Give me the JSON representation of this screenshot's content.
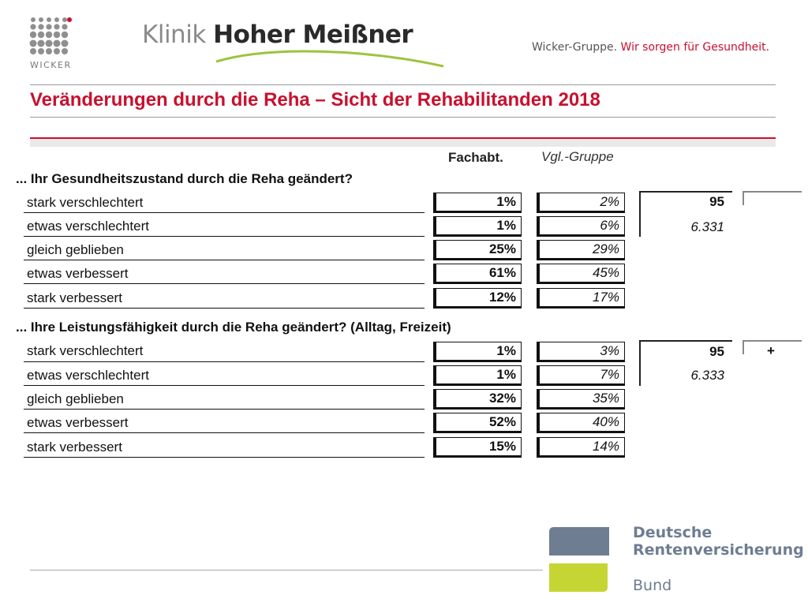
{
  "header": {
    "wicker_logo_text": "WICKER",
    "clinic_light": "Klinik ",
    "clinic_bold": "Hoher Meißner",
    "tagline_grey": "Wicker-Gruppe. ",
    "tagline_red": "Wir sorgen für Gesundheit."
  },
  "title": "Veränderungen durch die Reha – Sicht der Rehabilitanden 2018",
  "columns": {
    "fach": "Fachabt.",
    "vgl": "Vgl.-Gruppe"
  },
  "sections": [
    {
      "question": "... Ihr Gesundheitszustand durch die Reha geändert?",
      "rows": [
        {
          "label": "stark verschlechtert",
          "fach": "1%",
          "vgl": "2%"
        },
        {
          "label": "etwas verschlechtert",
          "fach": "1%",
          "vgl": "6%"
        },
        {
          "label": "gleich geblieben",
          "fach": "25%",
          "vgl": "29%"
        },
        {
          "label": "etwas verbessert",
          "fach": "61%",
          "vgl": "45%"
        },
        {
          "label": "stark verbessert",
          "fach": "12%",
          "vgl": "17%"
        }
      ],
      "n": "95",
      "n_vgl": "6.331",
      "sig": ""
    },
    {
      "question": "... Ihre Leistungsfähigkeit durch die Reha geändert? (Alltag, Freizeit)",
      "rows": [
        {
          "label": "stark verschlechtert",
          "fach": "1%",
          "vgl": "3%"
        },
        {
          "label": "etwas verschlechtert",
          "fach": "1%",
          "vgl": "7%"
        },
        {
          "label": "gleich geblieben",
          "fach": "32%",
          "vgl": "35%"
        },
        {
          "label": "etwas verbessert",
          "fach": "52%",
          "vgl": "40%"
        },
        {
          "label": "stark verbessert",
          "fach": "15%",
          "vgl": "14%"
        }
      ],
      "n": "95",
      "n_vgl": "6.333",
      "sig": "+"
    }
  ],
  "footer": {
    "drv_line1": "Deutsche",
    "drv_line2": "Rentenversicherung",
    "drv_line3": "Bund"
  },
  "colors": {
    "brand_red": "#c8102e",
    "swoosh_green": "#9cc43c",
    "drv_blue": "#6e7d91",
    "drv_green": "#c5d634"
  }
}
